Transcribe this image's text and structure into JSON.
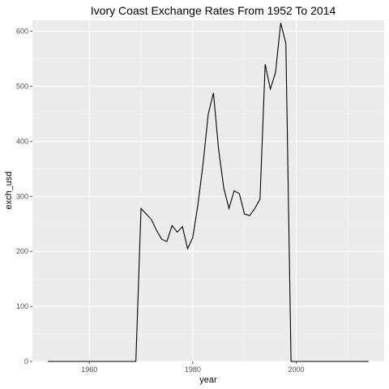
{
  "chart_data": {
    "type": "line",
    "title": "Ivory Coast Exchange Rates From 1952 To 2014",
    "xlabel": "year",
    "ylabel": "exch_usd",
    "xlim": [
      1949,
      2017
    ],
    "ylim": [
      0,
      620
    ],
    "x_ticks": [
      1960,
      1980,
      2000
    ],
    "y_ticks": [
      0,
      100,
      200,
      300,
      400,
      500,
      600
    ],
    "x_tick_labels": [
      "1960",
      "1980",
      "2000"
    ],
    "y_tick_labels": [
      "0",
      "100",
      "200",
      "300",
      "400",
      "500",
      "600"
    ],
    "grid": true,
    "legend": "none",
    "colors": {
      "panel": "#ebebeb",
      "grid_major": "#ffffff",
      "grid_minor": "#f5f5f5",
      "line": "#000000"
    },
    "series": [
      {
        "x": [
          1952,
          1953,
          1954,
          1955,
          1956,
          1957,
          1958,
          1959,
          1960,
          1961,
          1962,
          1963,
          1964,
          1965,
          1966,
          1967,
          1968,
          1969,
          1970,
          1971,
          1972,
          1973,
          1974,
          1975,
          1976,
          1977,
          1978,
          1979,
          1980,
          1981,
          1982,
          1983,
          1984,
          1985,
          1986,
          1987,
          1988,
          1989,
          1990,
          1991,
          1992,
          1993,
          1994,
          1995,
          1996,
          1997,
          1998,
          1999,
          2000,
          2001,
          2002,
          2003,
          2004,
          2005,
          2006,
          2007,
          2008,
          2009,
          2010,
          2011,
          2012,
          2013,
          2014
        ],
        "y": [
          0,
          0,
          0,
          0,
          0,
          0,
          0,
          0,
          0,
          0,
          0,
          0,
          0,
          0,
          0,
          0,
          0,
          0,
          278,
          268,
          258,
          238,
          222,
          218,
          247,
          235,
          245,
          205,
          225,
          285,
          360,
          450,
          488,
          385,
          315,
          278,
          310,
          305,
          268,
          265,
          278,
          295,
          540,
          495,
          525,
          615,
          578,
          0,
          0,
          0,
          0,
          0,
          0,
          0,
          0,
          0,
          0,
          0,
          0,
          0,
          0,
          0,
          0
        ]
      }
    ]
  }
}
